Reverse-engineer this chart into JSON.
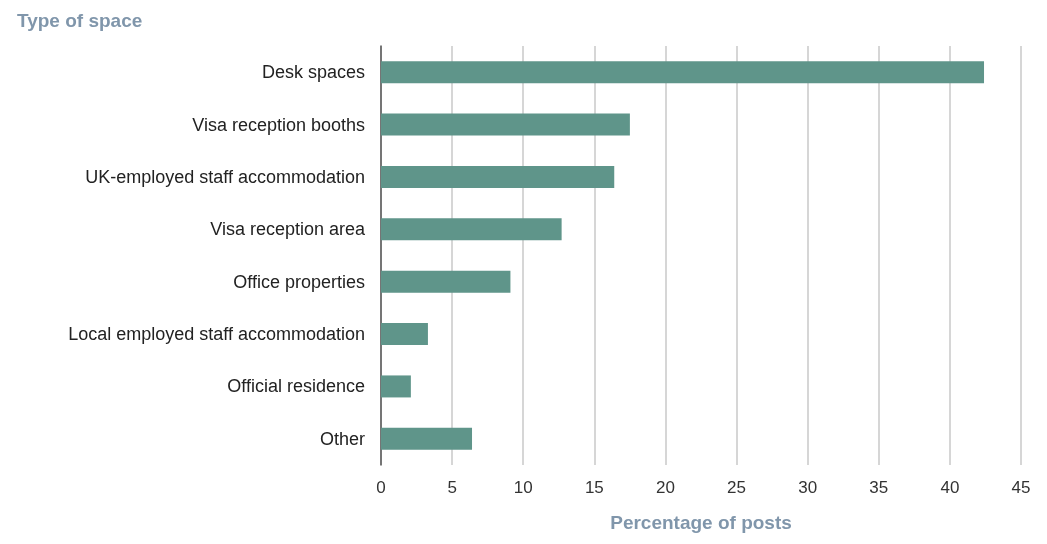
{
  "chart_data": {
    "type": "bar",
    "orientation": "horizontal",
    "title": "Type of space",
    "xlabel": "Percentage of posts",
    "categories": [
      "Desk spaces",
      "Visa reception booths",
      "UK-employed staff accommodation",
      "Visa reception area",
      "Office properties",
      "Local employed staff accommodation",
      "Official residence",
      "Other"
    ],
    "values": [
      42.4,
      17.5,
      16.4,
      12.7,
      9.1,
      3.3,
      2.1,
      6.4
    ],
    "color": "#5f958a",
    "xlim": [
      0,
      45
    ],
    "xticks": [
      0,
      5,
      10,
      15,
      20,
      25,
      30,
      35,
      40,
      45
    ],
    "grid": "x"
  }
}
